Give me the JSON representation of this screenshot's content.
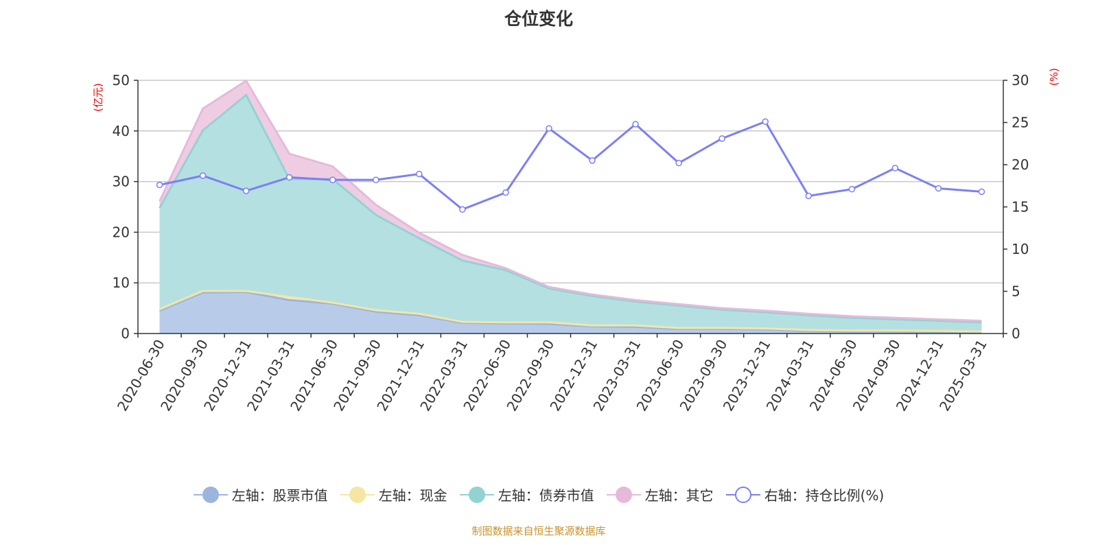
{
  "title": "仓位变化",
  "footer": "制图数据来自恒生聚源数据库",
  "chart_data": {
    "type": "area",
    "stacked": true,
    "title": "仓位变化",
    "left_axis": {
      "label": "(亿元)",
      "range": [
        0,
        50
      ],
      "ticks": [
        0,
        10,
        20,
        30,
        40,
        50
      ]
    },
    "right_axis": {
      "label": "(%)",
      "range": [
        0,
        30
      ],
      "ticks": [
        0,
        5,
        10,
        15,
        20,
        25,
        30
      ]
    },
    "grid": true,
    "legend_position": "bottom",
    "categories": [
      "2020-06-30",
      "2020-09-30",
      "2020-12-31",
      "2021-03-31",
      "2021-06-30",
      "2021-09-30",
      "2021-12-31",
      "2022-03-31",
      "2022-06-30",
      "2022-09-30",
      "2022-12-31",
      "2023-03-31",
      "2023-06-30",
      "2023-09-30",
      "2023-12-31",
      "2024-03-31",
      "2024-06-30",
      "2024-09-30",
      "2024-12-31",
      "2025-03-31"
    ],
    "series": [
      {
        "name": "左轴：股票市值",
        "axis": "left",
        "type": "area",
        "color": "#9bb5df",
        "fill": "#b8cce9",
        "values": [
          4.5,
          8.1,
          8.2,
          6.6,
          5.9,
          4.3,
          3.6,
          2.1,
          2.0,
          1.9,
          1.4,
          1.3,
          0.9,
          0.9,
          0.8,
          0.5,
          0.4,
          0.4,
          0.3,
          0.3
        ]
      },
      {
        "name": "左轴：现金",
        "axis": "left",
        "type": "area",
        "color": "#f5e6a3",
        "fill": "#f8edc0",
        "values": [
          0.3,
          0.3,
          0.2,
          0.6,
          0.2,
          0.3,
          0.3,
          0.2,
          0.2,
          0.3,
          0.2,
          0.3,
          0.2,
          0.2,
          0.2,
          0.2,
          0.2,
          0.2,
          0.2,
          0.1
        ]
      },
      {
        "name": "左轴：债券市值",
        "axis": "left",
        "type": "area",
        "color": "#93d2d3",
        "fill": "#b5e0e1",
        "values": [
          20.0,
          31.7,
          38.7,
          23.3,
          24.4,
          18.8,
          14.9,
          12.1,
          10.3,
          6.7,
          5.8,
          4.7,
          4.4,
          3.6,
          3.2,
          2.9,
          2.5,
          2.2,
          2.0,
          1.8
        ]
      },
      {
        "name": "左轴：其它",
        "axis": "left",
        "type": "area",
        "color": "#e6b9da",
        "fill": "#eecde3",
        "values": [
          1.3,
          4.3,
          2.8,
          5.0,
          2.5,
          2.0,
          1.1,
          1.1,
          0.4,
          0.3,
          0.3,
          0.3,
          0.3,
          0.3,
          0.3,
          0.3,
          0.3,
          0.3,
          0.3,
          0.3
        ]
      },
      {
        "name": "右轴：持仓比例(%)",
        "axis": "right",
        "type": "line",
        "color": "#7b7ff5",
        "values": [
          17.6,
          18.7,
          16.9,
          18.5,
          18.2,
          18.2,
          18.9,
          14.7,
          16.7,
          24.3,
          20.5,
          24.8,
          20.2,
          23.1,
          25.1,
          16.3,
          17.1,
          19.6,
          17.2,
          16.8
        ]
      }
    ]
  }
}
